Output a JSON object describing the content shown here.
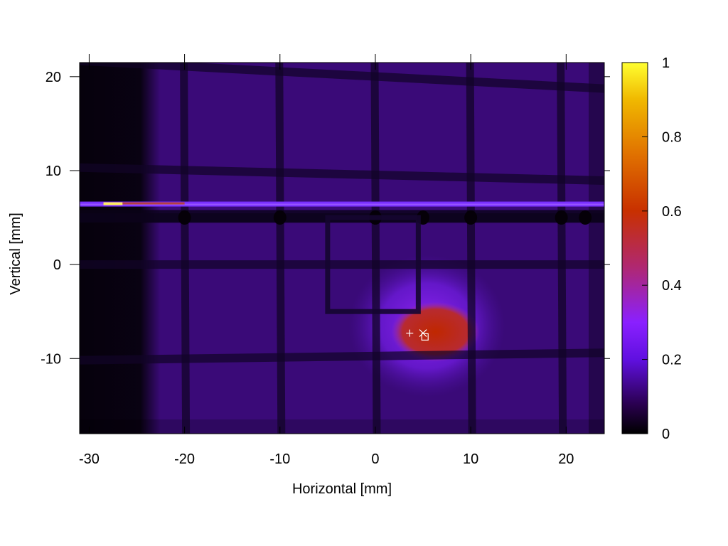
{
  "chart_data": {
    "type": "heatmap",
    "title": "",
    "xlabel": "Horizontal [mm]",
    "ylabel": "Vertical [mm]",
    "xlim": [
      -31,
      24
    ],
    "ylim": [
      -18,
      21.5
    ],
    "x_ticks": [
      -30,
      -20,
      -10,
      0,
      10,
      20
    ],
    "x_tick_labels": [
      "-30",
      "-20",
      "-10",
      "0",
      "10",
      "20"
    ],
    "y_ticks": [
      -10,
      0,
      10,
      20
    ],
    "y_tick_labels": [
      "-10",
      "0",
      "10",
      "20"
    ],
    "colorbar": {
      "range": [
        0,
        1
      ],
      "ticks": [
        0,
        0.2,
        0.4,
        0.6,
        0.8,
        1
      ],
      "tick_labels": [
        "0",
        "0.2",
        "0.4",
        "0.6",
        "0.8",
        "1"
      ],
      "colormap": "gnuplot-hot",
      "colors": [
        "#000000",
        "#2a0050",
        "#7a10ff",
        "#a030c0",
        "#c02000",
        "#e07000",
        "#f0b000",
        "#ffff30"
      ]
    },
    "background_intensity": 0.12,
    "beam_spot": {
      "center": [
        6.0,
        -7.0
      ],
      "peak_intensity": 0.5,
      "halo_intensity": 0.25
    },
    "horizontal_band": {
      "y": 6.4,
      "intensity": 0.2,
      "bright_end_x": [
        -28.5,
        -26.5
      ],
      "bright_end_intensity": 0.95
    },
    "dark_region_x": [
      -31,
      -24
    ],
    "grid_shadow_lines_x": [
      -20,
      -10,
      0,
      10,
      19.5
    ],
    "grid_shadow_lines_y": [
      21,
      10,
      5,
      0,
      -10
    ],
    "frame_shadow": {
      "x": [
        -5,
        4.5
      ],
      "y": [
        -5,
        5
      ]
    },
    "markers": [
      {
        "symbol": "plus",
        "x": 3.6,
        "y": -7.3
      },
      {
        "symbol": "cross",
        "x": 5.0,
        "y": -7.3
      },
      {
        "symbol": "square",
        "x": 5.2,
        "y": -7.7
      }
    ]
  }
}
